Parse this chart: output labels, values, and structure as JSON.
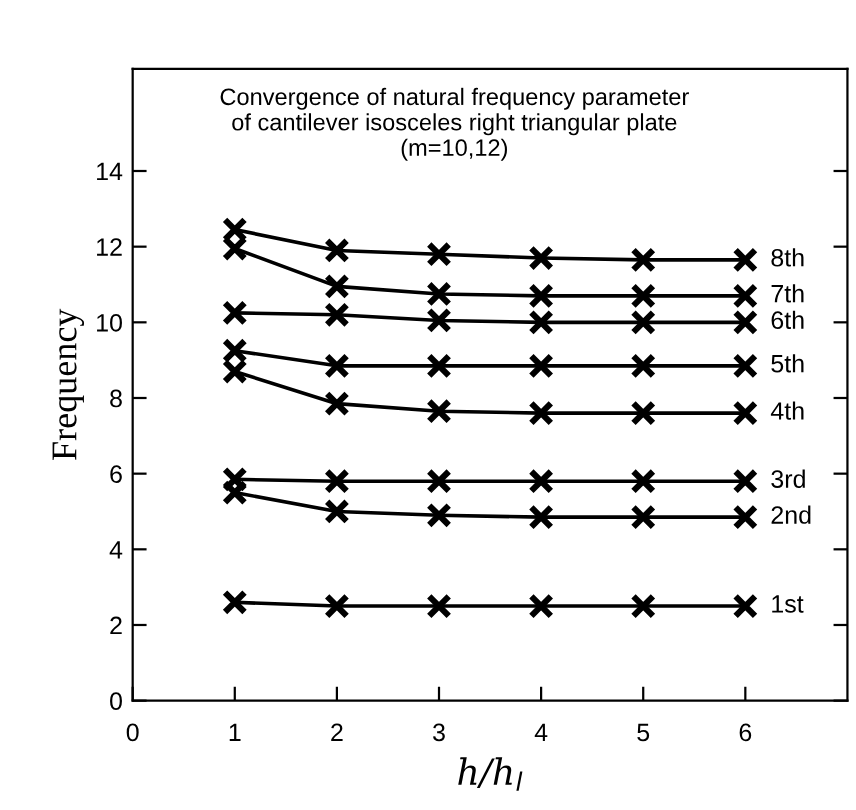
{
  "chart_data": {
    "type": "line",
    "title": "Convergence of natural frequency parameter\nof cantilever isosceles right triangular plate\n(m=10,12)",
    "xlabel": "h/h$_{l}$",
    "ylabel": "Frequency",
    "x": [
      1,
      2,
      3,
      4,
      5,
      6
    ],
    "xlim": [
      0,
      7
    ],
    "xticks": [
      0,
      1,
      2,
      3,
      4,
      5,
      6
    ],
    "ylim": [
      0,
      16.7
    ],
    "yticks": [
      0,
      2,
      4,
      6,
      8,
      10,
      12,
      14
    ],
    "marker": "cross",
    "line_style": "solid",
    "grid": false,
    "legend": "right",
    "series": [
      {
        "name": "1st",
        "color": "#000000",
        "values": [
          2.6,
          2.5,
          2.5,
          2.5,
          2.5,
          2.5
        ]
      },
      {
        "name": "2nd",
        "color": "#000000",
        "values": [
          5.5,
          5.0,
          4.9,
          4.85,
          4.85,
          4.85
        ]
      },
      {
        "name": "3rd",
        "color": "#000000",
        "values": [
          5.85,
          5.8,
          5.8,
          5.8,
          5.8,
          5.8
        ]
      },
      {
        "name": "4th",
        "color": "#000000",
        "values": [
          8.7,
          7.85,
          7.65,
          7.6,
          7.6,
          7.6
        ]
      },
      {
        "name": "5th",
        "color": "#000000",
        "values": [
          9.25,
          8.85,
          8.85,
          8.85,
          8.85,
          8.85
        ]
      },
      {
        "name": "6th",
        "color": "#000000",
        "values": [
          10.25,
          10.2,
          10.05,
          10.0,
          10.0,
          10.0
        ]
      },
      {
        "name": "7th",
        "color": "#000000",
        "values": [
          11.95,
          10.95,
          10.75,
          10.7,
          10.7,
          10.7
        ]
      },
      {
        "name": "8th",
        "color": "#000000",
        "values": [
          12.45,
          11.9,
          11.8,
          11.7,
          11.65,
          11.65
        ]
      }
    ]
  }
}
